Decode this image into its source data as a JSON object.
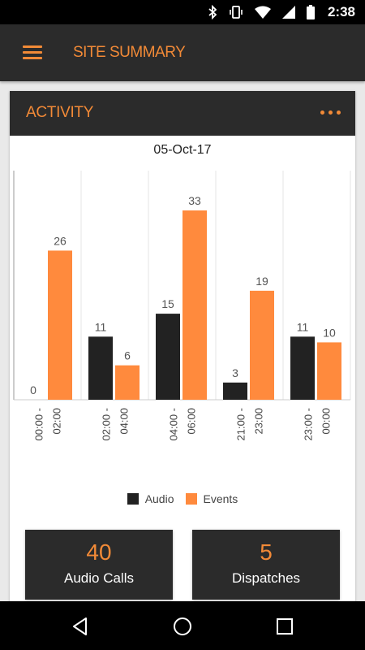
{
  "status_bar": {
    "time": "2:38",
    "icons": [
      "bluetooth-icon",
      "vibrate-icon",
      "wifi-icon",
      "signal-icon",
      "battery-icon"
    ]
  },
  "app_bar": {
    "title": "SITE SUMMARY",
    "menu_icon": "hamburger-menu-icon"
  },
  "card": {
    "title": "ACTIVITY",
    "more_icon": "more-dots-icon"
  },
  "colors": {
    "accent": "#f28a37",
    "dark": "#2b2b2b",
    "audio": "#222222",
    "events": "#ff8a3d"
  },
  "chart_data": {
    "type": "bar",
    "title": "05-Oct-17",
    "categories": [
      "00:00 - 02:00",
      "02:00 - 04:00",
      "04:00 - 06:00",
      "21:00 - 23:00",
      "23:00 - 00:00"
    ],
    "series": [
      {
        "name": "Audio",
        "values": [
          0,
          11,
          15,
          3,
          11
        ]
      },
      {
        "name": "Events",
        "values": [
          26,
          6,
          33,
          19,
          10
        ]
      }
    ],
    "ylim": [
      0,
      33
    ],
    "grid": "vertical",
    "legend": "bottom"
  },
  "stats": [
    {
      "value": "40",
      "label": "Audio Calls"
    },
    {
      "value": "5",
      "label": "Dispatches"
    }
  ],
  "nav": [
    "back-icon",
    "home-icon",
    "recents-icon"
  ]
}
